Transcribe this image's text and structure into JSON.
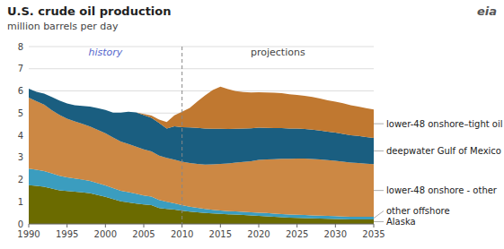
{
  "chart_data": {
    "type": "area",
    "stacked": true,
    "grid": true,
    "title": "U.S. crude oil production",
    "subtitle": "million barrels per day",
    "annotations": [
      "history",
      "projections",
      "eia"
    ],
    "divider_year": 2010,
    "xlim": [
      1990,
      2035
    ],
    "ylim": [
      0,
      8
    ],
    "xticks": [
      1990,
      1995,
      2000,
      2005,
      2010,
      2015,
      2020,
      2025,
      2030,
      2035
    ],
    "yticks": [
      0,
      1,
      2,
      3,
      4,
      5,
      6,
      7,
      8
    ],
    "x": [
      1990,
      1991,
      1992,
      1993,
      1994,
      1995,
      1996,
      1997,
      1998,
      1999,
      2000,
      2001,
      2002,
      2003,
      2004,
      2005,
      2006,
      2007,
      2008,
      2009,
      2010,
      2011,
      2012,
      2013,
      2014,
      2015,
      2016,
      2017,
      2018,
      2019,
      2020,
      2021,
      2022,
      2023,
      2024,
      2025,
      2026,
      2027,
      2028,
      2029,
      2030,
      2031,
      2032,
      2033,
      2034,
      2035
    ],
    "series": [
      {
        "name": "Alaska",
        "color": "#6b6b00",
        "values": [
          1.75,
          1.72,
          1.68,
          1.6,
          1.52,
          1.48,
          1.45,
          1.42,
          1.38,
          1.3,
          1.22,
          1.12,
          1.02,
          0.97,
          0.92,
          0.88,
          0.85,
          0.72,
          0.68,
          0.65,
          0.6,
          0.56,
          0.53,
          0.5,
          0.47,
          0.45,
          0.43,
          0.42,
          0.4,
          0.38,
          0.36,
          0.34,
          0.32,
          0.3,
          0.28,
          0.27,
          0.26,
          0.25,
          0.24,
          0.23,
          0.22,
          0.21,
          0.2,
          0.2,
          0.2,
          0.2
        ]
      },
      {
        "name": "other offshore",
        "color": "#3b9dbf",
        "values": [
          0.75,
          0.72,
          0.7,
          0.68,
          0.65,
          0.62,
          0.6,
          0.58,
          0.56,
          0.54,
          0.52,
          0.5,
          0.48,
          0.46,
          0.44,
          0.4,
          0.38,
          0.36,
          0.32,
          0.28,
          0.25,
          0.22,
          0.2,
          0.18,
          0.17,
          0.16,
          0.15,
          0.15,
          0.15,
          0.15,
          0.15,
          0.15,
          0.14,
          0.14,
          0.14,
          0.14,
          0.14,
          0.13,
          0.13,
          0.13,
          0.13,
          0.12,
          0.12,
          0.12,
          0.12,
          0.12
        ]
      },
      {
        "name": "lower-48 onshore - other",
        "color": "#cc8844",
        "values": [
          3.2,
          3.1,
          3.0,
          2.85,
          2.75,
          2.65,
          2.58,
          2.52,
          2.45,
          2.4,
          2.35,
          2.28,
          2.22,
          2.18,
          2.12,
          2.08,
          2.04,
          2.0,
          1.98,
          1.97,
          1.96,
          1.97,
          1.98,
          2.0,
          2.05,
          2.1,
          2.15,
          2.2,
          2.25,
          2.3,
          2.38,
          2.42,
          2.46,
          2.5,
          2.52,
          2.54,
          2.55,
          2.55,
          2.54,
          2.52,
          2.5,
          2.48,
          2.45,
          2.43,
          2.4,
          2.38
        ]
      },
      {
        "name": "deepwater Gulf of Mexico",
        "color": "#1a5e80",
        "values": [
          0.4,
          0.42,
          0.5,
          0.6,
          0.65,
          0.68,
          0.72,
          0.8,
          0.9,
          0.98,
          1.05,
          1.12,
          1.3,
          1.45,
          1.55,
          1.55,
          1.52,
          1.48,
          1.32,
          1.5,
          1.55,
          1.6,
          1.62,
          1.62,
          1.6,
          1.58,
          1.55,
          1.52,
          1.5,
          1.48,
          1.45,
          1.42,
          1.4,
          1.38,
          1.36,
          1.35,
          1.33,
          1.32,
          1.3,
          1.28,
          1.27,
          1.25,
          1.23,
          1.22,
          1.2,
          1.18
        ]
      },
      {
        "name": "lower-48 onshore–tight oil",
        "color": "#c07830",
        "values": [
          0.0,
          0.0,
          0.0,
          0.0,
          0.0,
          0.0,
          0.0,
          0.0,
          0.0,
          0.0,
          0.0,
          0.0,
          0.0,
          0.0,
          0.0,
          0.05,
          0.1,
          0.15,
          0.3,
          0.5,
          0.7,
          0.88,
          1.2,
          1.5,
          1.75,
          1.9,
          1.8,
          1.7,
          1.65,
          1.62,
          1.6,
          1.6,
          1.6,
          1.58,
          1.55,
          1.52,
          1.5,
          1.48,
          1.45,
          1.42,
          1.4,
          1.38,
          1.35,
          1.32,
          1.3,
          1.28
        ]
      }
    ]
  }
}
